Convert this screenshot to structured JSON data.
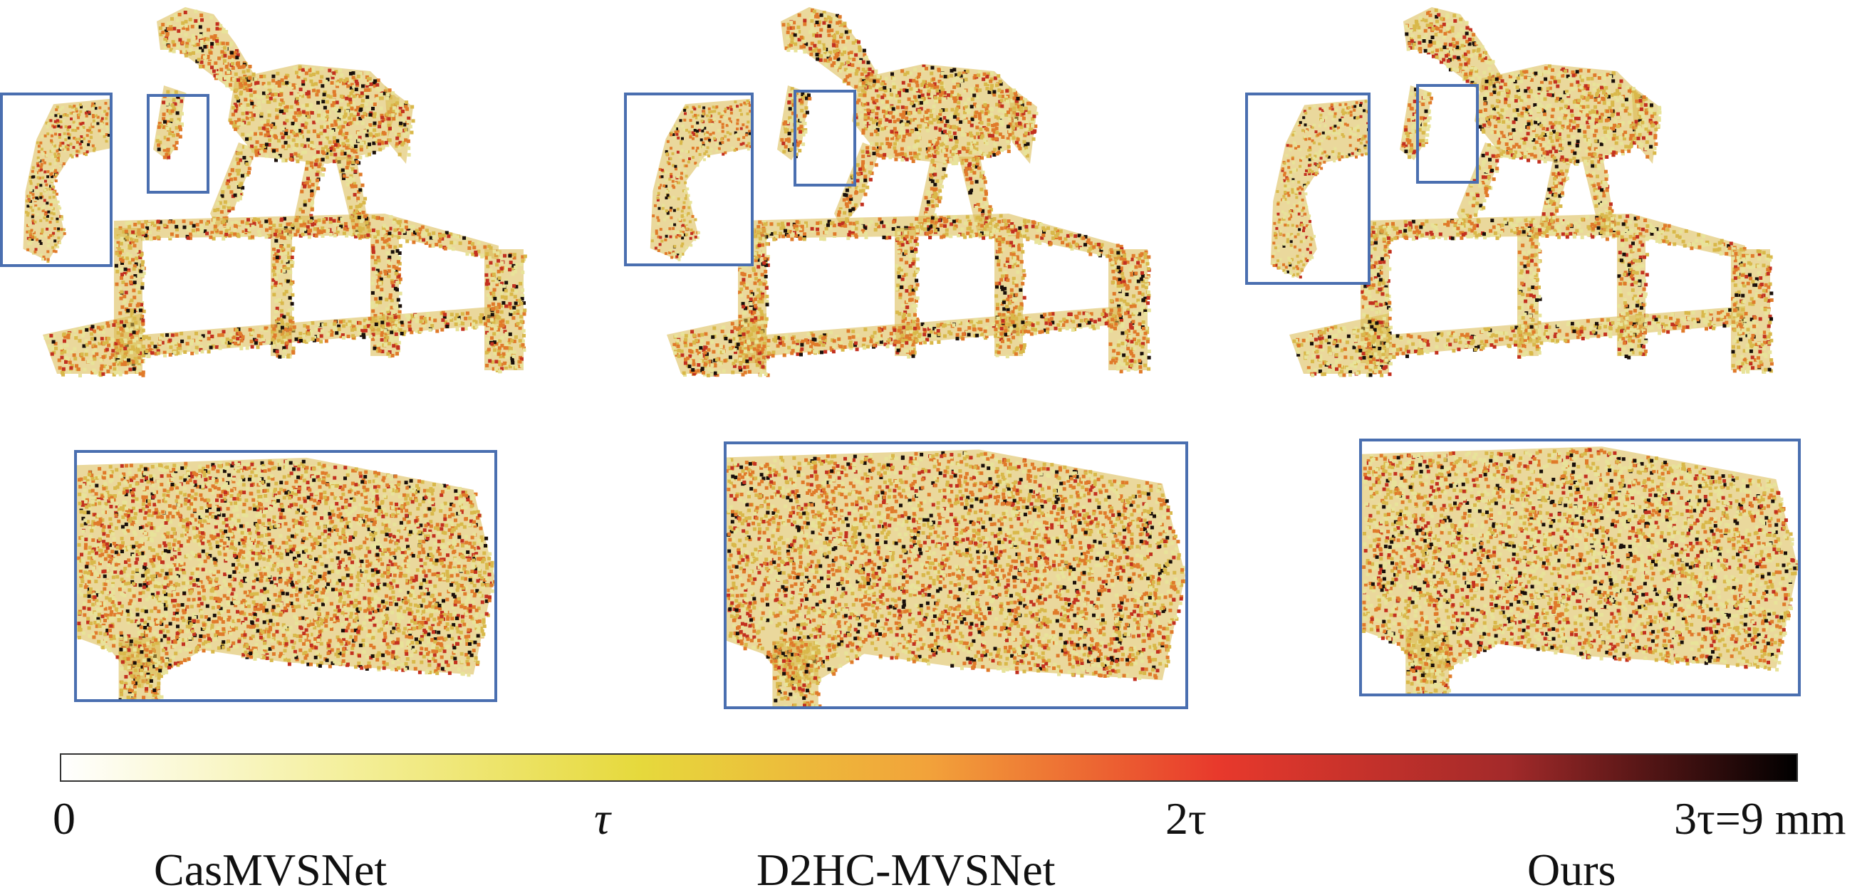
{
  "methods": [
    "CasMVSNet",
    "D2HC-MVSNet",
    "Ours"
  ],
  "colorbar": {
    "ticks": [
      {
        "label": "0"
      },
      {
        "label": "τ"
      },
      {
        "label": "2τ"
      },
      {
        "label": "3τ=9 mm"
      }
    ],
    "gradient_stops": [
      "#ffffff",
      "#f4ef9a",
      "#e6d93c",
      "#f2a23a",
      "#e8392c",
      "#a32a2a",
      "#000000"
    ]
  },
  "colors": {
    "frame": "#4a6fb0",
    "surface_light": "#e8e39a",
    "surface_mid": "#d9b84a",
    "error_orange": "#e07a2a",
    "error_red": "#c3301f",
    "error_dark": "#1a0f0a"
  },
  "panels": [
    {
      "method_index": 0,
      "error_level": 0.55
    },
    {
      "method_index": 1,
      "error_level": 0.75
    },
    {
      "method_index": 2,
      "error_level": 0.3
    }
  ]
}
